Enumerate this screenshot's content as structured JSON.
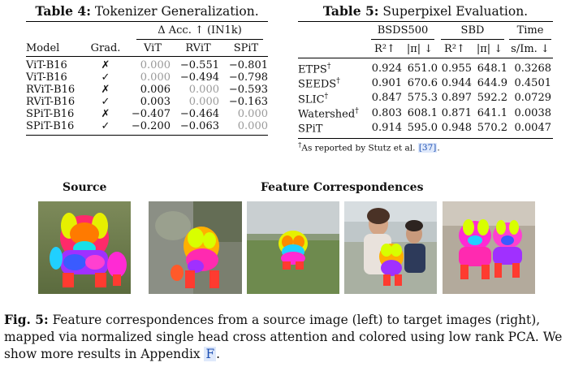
{
  "table4": {
    "caption_label": "Table 4:",
    "caption_text": "Tokenizer Generalization.",
    "group_header": "Δ Acc. ↑ (IN1k)",
    "columns": [
      "Model",
      "Grad.",
      "ViT",
      "RViT",
      "SPiT"
    ],
    "rows": [
      {
        "model": "ViT-B16",
        "grad": "✗",
        "vit": "0.000",
        "rvit": "−0.551",
        "spit": "−0.801",
        "gray": "vit"
      },
      {
        "model": "ViT-B16",
        "grad": "✓",
        "vit": "0.000",
        "rvit": "−0.494",
        "spit": "−0.798",
        "gray": "vit"
      },
      {
        "model": "RViT-B16",
        "grad": "✗",
        "vit": "0.006",
        "rvit": "0.000",
        "spit": "−0.593",
        "gray": "rvit"
      },
      {
        "model": "RViT-B16",
        "grad": "✓",
        "vit": "0.003",
        "rvit": "0.000",
        "spit": "−0.163",
        "gray": "rvit"
      },
      {
        "model": "SPiT-B16",
        "grad": "✗",
        "vit": "−0.407",
        "rvit": "−0.464",
        "spit": "0.000",
        "gray": "spit"
      },
      {
        "model": "SPiT-B16",
        "grad": "✓",
        "vit": "−0.200",
        "rvit": "−0.063",
        "spit": "0.000",
        "gray": "spit"
      }
    ]
  },
  "table5": {
    "caption_label": "Table 5:",
    "caption_text": "Superpixel Evaluation.",
    "groups": [
      "BSDS500",
      "SBD",
      "Time"
    ],
    "subheaders": [
      "R²↑",
      "|π| ↓",
      "R²↑",
      "|π| ↓",
      "s/Im. ↓"
    ],
    "rows": [
      {
        "method": "ETPS",
        "dagger": "†",
        "vals": [
          "0.924",
          "651.0",
          "0.955",
          "648.1",
          "0.3268"
        ]
      },
      {
        "method": "SEEDS",
        "dagger": "†",
        "vals": [
          "0.901",
          "670.6",
          "0.944",
          "644.9",
          "0.4501"
        ]
      },
      {
        "method": "SLIC",
        "dagger": "†",
        "vals": [
          "0.847",
          "575.3",
          "0.897",
          "592.2",
          "0.0729"
        ]
      },
      {
        "method": "Watershed",
        "dagger": "†",
        "vals": [
          "0.803",
          "608.1",
          "0.871",
          "641.1",
          "0.0038"
        ]
      },
      {
        "method": "SPiT",
        "dagger": "",
        "vals": [
          "0.914",
          "595.0",
          "0.948",
          "570.2",
          "0.0047"
        ]
      }
    ],
    "footnote_mark": "†",
    "footnote_text": "As reported by Stutz et al.",
    "footnote_ref": "[37]",
    "footnote_end": "."
  },
  "figure": {
    "source_label": "Source",
    "targets_label": "Feature Correspondences",
    "caption_label": "Fig. 5:",
    "caption_text": "Feature correspondences from a source image (left) to target images (right), mapped via normalized single head cross attention and colored using low rank PCA. We show more results in Appendix",
    "caption_ref": "F",
    "caption_end": "."
  }
}
